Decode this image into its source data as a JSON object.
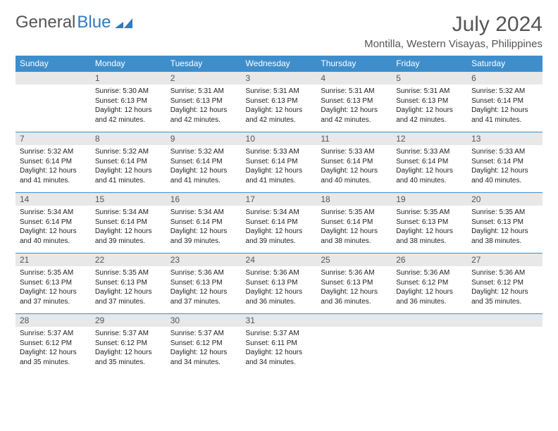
{
  "brand": {
    "part1": "General",
    "part2": "Blue"
  },
  "title": "July 2024",
  "subtitle": "Montilla, Western Visayas, Philippines",
  "colors": {
    "header_bg": "#3f8ecc",
    "header_text": "#ffffff",
    "daynum_bg": "#e8e8e8",
    "border": "#3f8ecc",
    "brand_gray": "#555555",
    "brand_blue": "#2e7cc2"
  },
  "weekdays": [
    "Sunday",
    "Monday",
    "Tuesday",
    "Wednesday",
    "Thursday",
    "Friday",
    "Saturday"
  ],
  "weeks": [
    [
      {
        "day": "",
        "lines": []
      },
      {
        "day": "1",
        "lines": [
          "Sunrise: 5:30 AM",
          "Sunset: 6:13 PM",
          "Daylight: 12 hours and 42 minutes."
        ]
      },
      {
        "day": "2",
        "lines": [
          "Sunrise: 5:31 AM",
          "Sunset: 6:13 PM",
          "Daylight: 12 hours and 42 minutes."
        ]
      },
      {
        "day": "3",
        "lines": [
          "Sunrise: 5:31 AM",
          "Sunset: 6:13 PM",
          "Daylight: 12 hours and 42 minutes."
        ]
      },
      {
        "day": "4",
        "lines": [
          "Sunrise: 5:31 AM",
          "Sunset: 6:13 PM",
          "Daylight: 12 hours and 42 minutes."
        ]
      },
      {
        "day": "5",
        "lines": [
          "Sunrise: 5:31 AM",
          "Sunset: 6:13 PM",
          "Daylight: 12 hours and 42 minutes."
        ]
      },
      {
        "day": "6",
        "lines": [
          "Sunrise: 5:32 AM",
          "Sunset: 6:14 PM",
          "Daylight: 12 hours and 41 minutes."
        ]
      }
    ],
    [
      {
        "day": "7",
        "lines": [
          "Sunrise: 5:32 AM",
          "Sunset: 6:14 PM",
          "Daylight: 12 hours and 41 minutes."
        ]
      },
      {
        "day": "8",
        "lines": [
          "Sunrise: 5:32 AM",
          "Sunset: 6:14 PM",
          "Daylight: 12 hours and 41 minutes."
        ]
      },
      {
        "day": "9",
        "lines": [
          "Sunrise: 5:32 AM",
          "Sunset: 6:14 PM",
          "Daylight: 12 hours and 41 minutes."
        ]
      },
      {
        "day": "10",
        "lines": [
          "Sunrise: 5:33 AM",
          "Sunset: 6:14 PM",
          "Daylight: 12 hours and 41 minutes."
        ]
      },
      {
        "day": "11",
        "lines": [
          "Sunrise: 5:33 AM",
          "Sunset: 6:14 PM",
          "Daylight: 12 hours and 40 minutes."
        ]
      },
      {
        "day": "12",
        "lines": [
          "Sunrise: 5:33 AM",
          "Sunset: 6:14 PM",
          "Daylight: 12 hours and 40 minutes."
        ]
      },
      {
        "day": "13",
        "lines": [
          "Sunrise: 5:33 AM",
          "Sunset: 6:14 PM",
          "Daylight: 12 hours and 40 minutes."
        ]
      }
    ],
    [
      {
        "day": "14",
        "lines": [
          "Sunrise: 5:34 AM",
          "Sunset: 6:14 PM",
          "Daylight: 12 hours and 40 minutes."
        ]
      },
      {
        "day": "15",
        "lines": [
          "Sunrise: 5:34 AM",
          "Sunset: 6:14 PM",
          "Daylight: 12 hours and 39 minutes."
        ]
      },
      {
        "day": "16",
        "lines": [
          "Sunrise: 5:34 AM",
          "Sunset: 6:14 PM",
          "Daylight: 12 hours and 39 minutes."
        ]
      },
      {
        "day": "17",
        "lines": [
          "Sunrise: 5:34 AM",
          "Sunset: 6:14 PM",
          "Daylight: 12 hours and 39 minutes."
        ]
      },
      {
        "day": "18",
        "lines": [
          "Sunrise: 5:35 AM",
          "Sunset: 6:14 PM",
          "Daylight: 12 hours and 38 minutes."
        ]
      },
      {
        "day": "19",
        "lines": [
          "Sunrise: 5:35 AM",
          "Sunset: 6:13 PM",
          "Daylight: 12 hours and 38 minutes."
        ]
      },
      {
        "day": "20",
        "lines": [
          "Sunrise: 5:35 AM",
          "Sunset: 6:13 PM",
          "Daylight: 12 hours and 38 minutes."
        ]
      }
    ],
    [
      {
        "day": "21",
        "lines": [
          "Sunrise: 5:35 AM",
          "Sunset: 6:13 PM",
          "Daylight: 12 hours and 37 minutes."
        ]
      },
      {
        "day": "22",
        "lines": [
          "Sunrise: 5:35 AM",
          "Sunset: 6:13 PM",
          "Daylight: 12 hours and 37 minutes."
        ]
      },
      {
        "day": "23",
        "lines": [
          "Sunrise: 5:36 AM",
          "Sunset: 6:13 PM",
          "Daylight: 12 hours and 37 minutes."
        ]
      },
      {
        "day": "24",
        "lines": [
          "Sunrise: 5:36 AM",
          "Sunset: 6:13 PM",
          "Daylight: 12 hours and 36 minutes."
        ]
      },
      {
        "day": "25",
        "lines": [
          "Sunrise: 5:36 AM",
          "Sunset: 6:13 PM",
          "Daylight: 12 hours and 36 minutes."
        ]
      },
      {
        "day": "26",
        "lines": [
          "Sunrise: 5:36 AM",
          "Sunset: 6:12 PM",
          "Daylight: 12 hours and 36 minutes."
        ]
      },
      {
        "day": "27",
        "lines": [
          "Sunrise: 5:36 AM",
          "Sunset: 6:12 PM",
          "Daylight: 12 hours and 35 minutes."
        ]
      }
    ],
    [
      {
        "day": "28",
        "lines": [
          "Sunrise: 5:37 AM",
          "Sunset: 6:12 PM",
          "Daylight: 12 hours and 35 minutes."
        ]
      },
      {
        "day": "29",
        "lines": [
          "Sunrise: 5:37 AM",
          "Sunset: 6:12 PM",
          "Daylight: 12 hours and 35 minutes."
        ]
      },
      {
        "day": "30",
        "lines": [
          "Sunrise: 5:37 AM",
          "Sunset: 6:12 PM",
          "Daylight: 12 hours and 34 minutes."
        ]
      },
      {
        "day": "31",
        "lines": [
          "Sunrise: 5:37 AM",
          "Sunset: 6:11 PM",
          "Daylight: 12 hours and 34 minutes."
        ]
      },
      {
        "day": "",
        "lines": []
      },
      {
        "day": "",
        "lines": []
      },
      {
        "day": "",
        "lines": []
      }
    ]
  ]
}
